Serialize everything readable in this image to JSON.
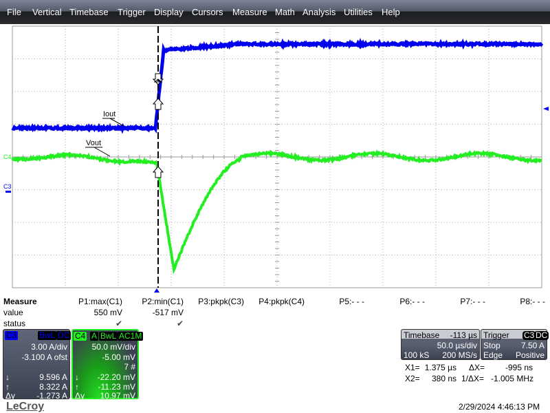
{
  "menu": [
    "File",
    "Vertical",
    "Timebase",
    "Trigger",
    "Display",
    "Cursors",
    "Measure",
    "Math",
    "Analysis",
    "Utilities",
    "Help"
  ],
  "traces": {
    "c3_label": "Iout",
    "c4_label": "Vout",
    "c3_marker": "C3",
    "c4_marker": "C4",
    "c3_color": "#0000ee",
    "c4_color": "#22ee22"
  },
  "measure": {
    "title": "Measure",
    "row_value": "value",
    "row_status": "status",
    "params": [
      {
        "name": "P1:max(C1)",
        "value": "550 mV",
        "status": "✔"
      },
      {
        "name": "P2:min(C1)",
        "value": "-517 mV",
        "status": "✔"
      },
      {
        "name": "P3:pkpk(C3)",
        "value": "",
        "status": ""
      },
      {
        "name": "P4:pkpk(C4)",
        "value": "",
        "status": ""
      },
      {
        "name": "P5:- - -"
      },
      {
        "name": "P6:- - -"
      },
      {
        "name": "P7:- - -"
      },
      {
        "name": "P8:- - -"
      }
    ]
  },
  "c3": {
    "name": "C3",
    "tags": [
      "BwL",
      "DC"
    ],
    "vdiv": "3.00 A/div",
    "offset": "-3.100 A ofst",
    "down": "9.596 A",
    "up": "8.322 A",
    "dy": "-1.273 A"
  },
  "c4": {
    "name": "C4",
    "tags": [
      "A",
      "BwL",
      "AC1M"
    ],
    "vdiv": "50.0 mV/div",
    "offset": "-5.00 mV",
    "sweeps": "7 #",
    "down": "-22.20 mV",
    "up": "-11.23 mV",
    "dy": "10.97 mV"
  },
  "timebase": {
    "label": "Timebase",
    "delay": "-113 µs",
    "tdiv": "50.0 µs/div",
    "samples": "100 kS",
    "rate": "200 MS/s"
  },
  "trigger": {
    "label": "Trigger",
    "source": "C3",
    "coupling": "DC",
    "mode": "Stop",
    "level": "7.50 A",
    "type": "Edge",
    "slope": "Positive"
  },
  "cursors": {
    "x1_label": "X1=",
    "x1": "1.375 µs",
    "dx_label": "ΔX=",
    "dx": "-995 ns",
    "x2_label": "X2=",
    "x2": "380 ns",
    "inv_label": "1/ΔX=",
    "inv": "-1.005 MHz"
  },
  "brand": "LeCroy",
  "datetime": "2/29/2024 4:46:13 PM"
}
